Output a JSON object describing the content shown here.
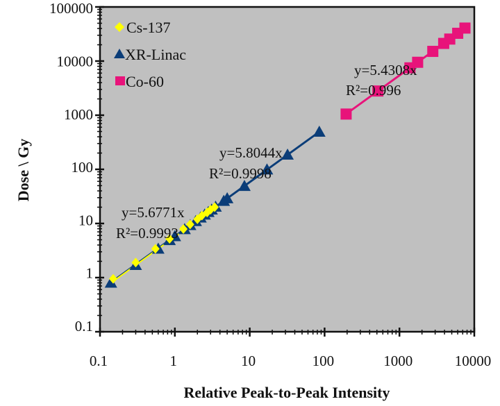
{
  "chart_data": {
    "type": "scatter",
    "xlabel": "Relative Peak-to-Peak Intensity",
    "ylabel": "Dose \\ Gy",
    "xscale": "log",
    "yscale": "log",
    "xlim": [
      0.1,
      10000
    ],
    "ylim": [
      0.1,
      100000
    ],
    "x_ticks": [
      "0.1",
      "1",
      "10",
      "100",
      "1000",
      "10000"
    ],
    "y_ticks": [
      "0.1",
      "1",
      "10",
      "100",
      "1000",
      "10000",
      "100000"
    ],
    "grid": false,
    "background": "#c0c0c0",
    "legend_position": "top-left",
    "series": [
      {
        "name": "Cs-137",
        "marker": "diamond",
        "color": "#ffff00",
        "x": [
          0.15,
          0.3,
          0.55,
          0.85,
          1.3,
          1.6,
          2.0,
          2.3,
          2.7,
          3.0,
          3.4
        ],
        "y": [
          0.95,
          1.9,
          3.4,
          5.2,
          7.9,
          9.6,
          12,
          14,
          16,
          18,
          20
        ],
        "trendline": {
          "slope": 5.6771,
          "equation": "y=5.6771x",
          "r2": "R²=0.9993"
        }
      },
      {
        "name": "XR-Linac",
        "marker": "triangle",
        "color": "#0b3d78",
        "x": [
          0.14,
          0.3,
          0.6,
          0.85,
          1.0,
          1.35,
          1.6,
          1.9,
          2.2,
          2.5,
          2.8,
          3.1,
          3.5,
          4.5,
          5,
          8.5,
          17,
          32,
          85
        ],
        "y": [
          0.8,
          1.7,
          3.4,
          4.9,
          5.8,
          7.8,
          9.3,
          11,
          12.8,
          14.5,
          16.2,
          18,
          20.3,
          26,
          29,
          49,
          99,
          186,
          493
        ],
        "trendline": {
          "slope": 5.8044,
          "equation": "y=5.8044x",
          "r2": "R²=0.9998"
        }
      },
      {
        "name": "Co-60",
        "marker": "square",
        "color": "#e8137a",
        "x": [
          194,
          515,
          1380,
          1750,
          2790,
          3900,
          4700,
          6000,
          7500
        ],
        "y": [
          1050,
          2800,
          7500,
          9500,
          15100,
          21200,
          25500,
          32600,
          40700
        ],
        "trendline": {
          "slope": 5.4308,
          "equation": "y=5.4308x",
          "r2": "R²=0.996"
        }
      }
    ]
  }
}
